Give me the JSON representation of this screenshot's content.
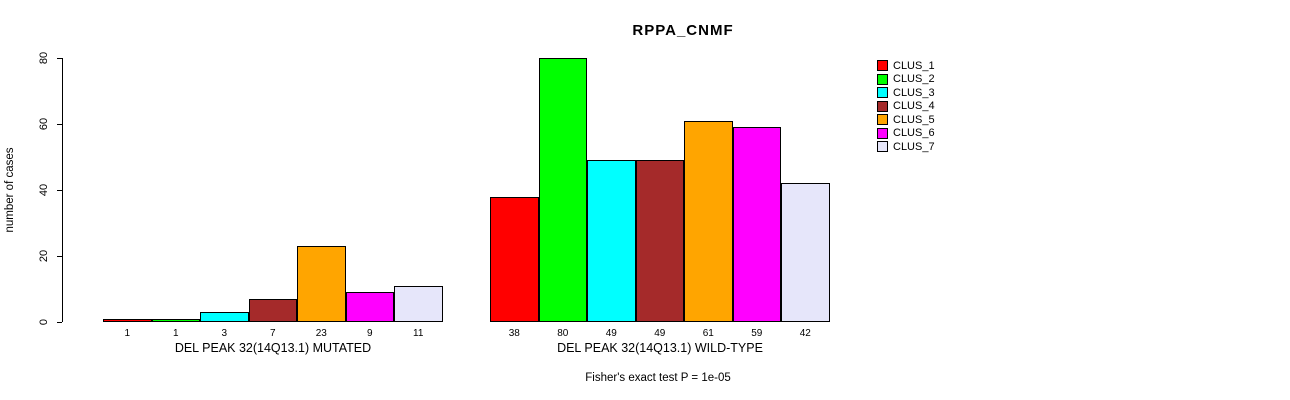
{
  "chart_data": {
    "type": "bar",
    "title": "RPPA_CNMF",
    "ylabel": "number of cases",
    "xlabel": "",
    "ylim": [
      0,
      80
    ],
    "yticks": [
      0,
      20,
      40,
      60,
      80
    ],
    "grid": false,
    "bar_border_color": "#000000",
    "series_colors": [
      "#FF0000",
      "#00FF00",
      "#00FFFF",
      "#A52A2A",
      "#FFA500",
      "#FF00FF",
      "#E6E6FA"
    ],
    "groups": [
      {
        "label": "DEL PEAK 32(14Q13.1) MUTATED",
        "values": [
          1,
          1,
          3,
          7,
          23,
          9,
          11
        ],
        "bar_value_labels": [
          "1",
          "1",
          "3",
          "7",
          "23",
          "9",
          "11"
        ]
      },
      {
        "label": "DEL PEAK 32(14Q13.1) WILD-TYPE",
        "values": [
          38,
          80,
          49,
          49,
          61,
          59,
          42
        ],
        "bar_value_labels": [
          "38",
          "80",
          "49",
          "49",
          "61",
          "59",
          "42"
        ]
      }
    ],
    "legend": {
      "position": "right",
      "entries": [
        {
          "label": "CLUS_1",
          "color": "#FF0000"
        },
        {
          "label": "CLUS_2",
          "color": "#00FF00"
        },
        {
          "label": "CLUS_3",
          "color": "#00FFFF"
        },
        {
          "label": "CLUS_4",
          "color": "#A52A2A"
        },
        {
          "label": "CLUS_5",
          "color": "#FFA500"
        },
        {
          "label": "CLUS_6",
          "color": "#FF00FF"
        },
        {
          "label": "CLUS_7",
          "color": "#E6E6FA"
        }
      ]
    },
    "caption": "Fisher's exact test P = 1e-05"
  }
}
